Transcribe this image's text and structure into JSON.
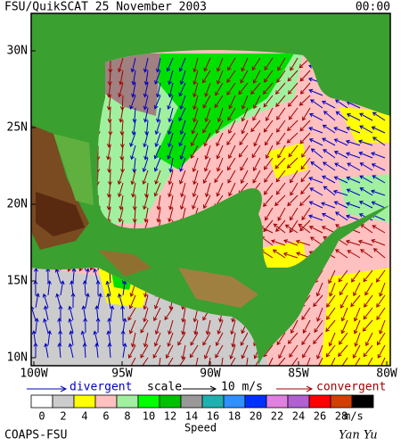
{
  "title": "FSU/QuikSCAT 25 November 2003",
  "time": "00:00",
  "lat_labels": [
    "30N",
    "25N",
    "20N",
    "15N",
    "10N"
  ],
  "lon_labels": [
    "100W",
    "95W",
    "90W",
    "85W",
    "80W"
  ],
  "legend": {
    "divergent": "divergent",
    "scale": "scale",
    "scale_value": "10 m/s",
    "convergent": "convergent"
  },
  "colorbar": {
    "labels": [
      0,
      2,
      4,
      6,
      8,
      10,
      12,
      14,
      16,
      18,
      20,
      22,
      24,
      26,
      28
    ],
    "colors": [
      "#ffffff",
      "#cccccc",
      "#ffff00",
      "#ffc0c0",
      "#a0f0a0",
      "#00ff00",
      "#00c000",
      "#999999",
      "#20b0b0",
      "#3090ff",
      "#0030ff",
      "#e080e0",
      "#b060d0",
      "#ff0000",
      "#d04000",
      "#000000"
    ],
    "unit": "m/s",
    "title": "Speed"
  },
  "credit": "COAPS-FSU",
  "author": "Yan Yu"
}
